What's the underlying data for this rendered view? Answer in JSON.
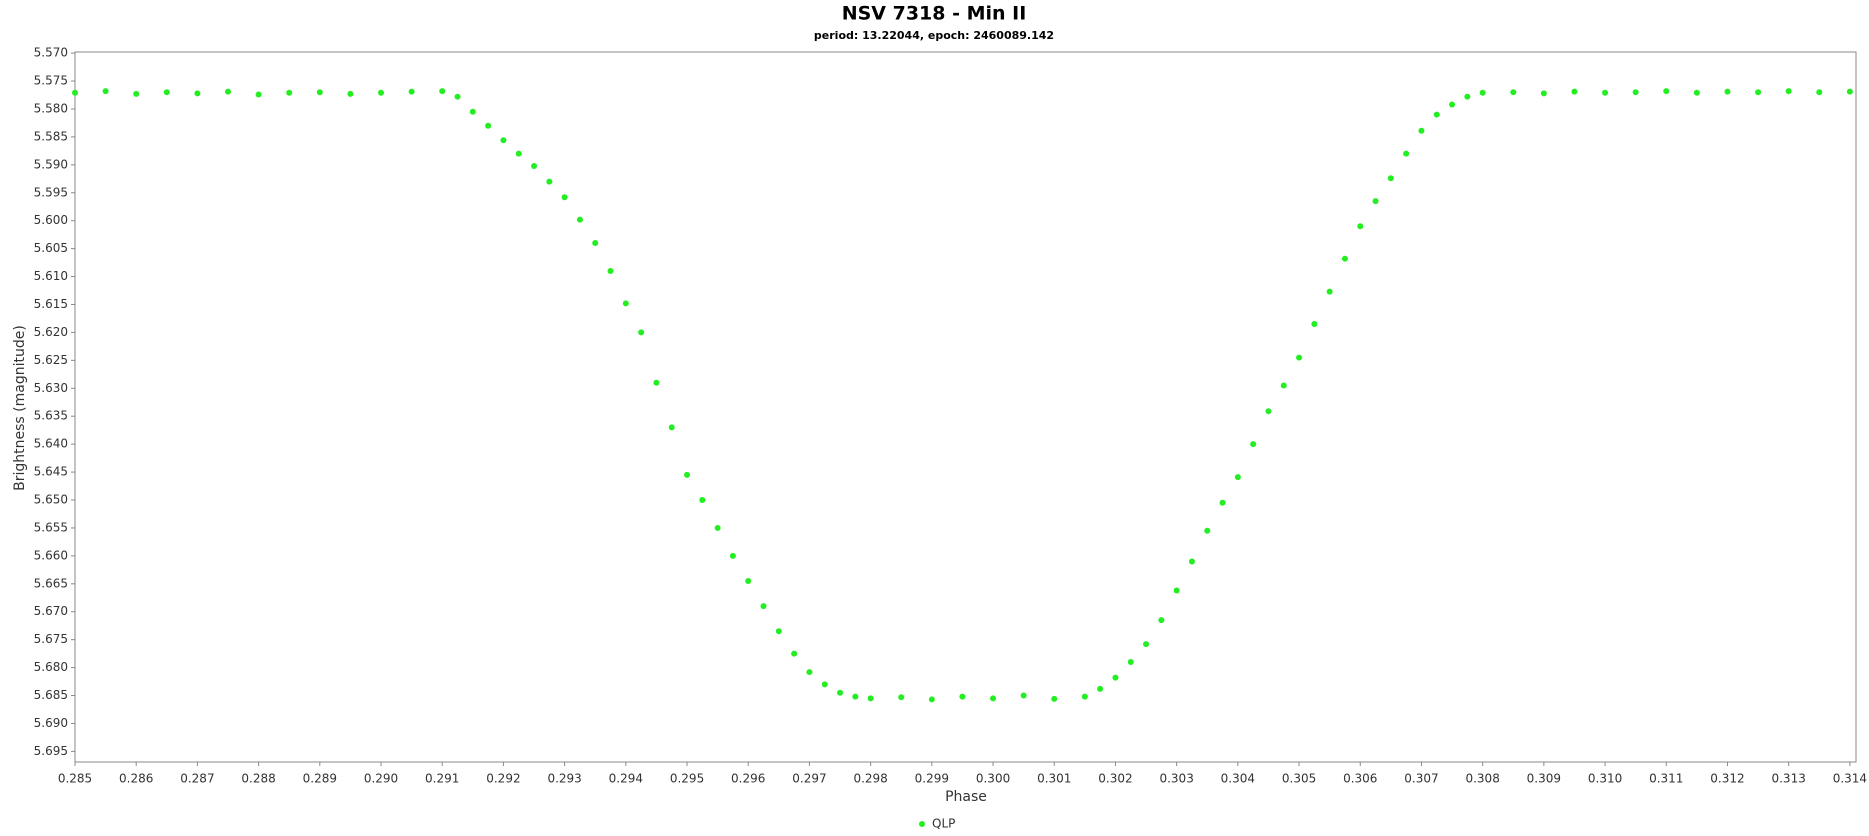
{
  "chart_data": {
    "type": "scatter",
    "title": "NSV 7318 - Min II",
    "subtitle": "period: 13.22044, epoch: 2460089.142",
    "x_label": "Phase",
    "y_label": "Brightness (magnitude)",
    "xlim": [
      0.285,
      0.3141
    ],
    "ylim": [
      5.5698,
      5.6969
    ],
    "y_inverted": true,
    "grid": false,
    "legend": "bottom",
    "xticks": [
      0.285,
      0.286,
      0.287,
      0.288,
      0.289,
      {
        "value": 0.29,
        "label": "0.290"
      },
      0.291,
      0.292,
      0.293,
      0.294,
      0.295,
      0.296,
      0.297,
      0.298,
      0.299,
      {
        "value": 0.3,
        "label": "0.300"
      },
      0.301,
      0.302,
      0.303,
      0.304,
      0.305,
      0.306,
      0.307,
      0.308,
      0.309,
      {
        "value": 0.31,
        "label": "0.310"
      },
      0.311,
      0.312,
      0.313,
      0.314
    ],
    "yticks": [
      {
        "value": 5.57,
        "label": "5.570"
      },
      5.575,
      {
        "value": 5.58,
        "label": "5.580"
      },
      5.585,
      {
        "value": 5.59,
        "label": "5.590"
      },
      5.595,
      {
        "value": 5.6,
        "label": "5.600"
      },
      5.605,
      {
        "value": 5.61,
        "label": "5.610"
      },
      5.615,
      {
        "value": 5.62,
        "label": "5.620"
      },
      5.625,
      {
        "value": 5.63,
        "label": "5.630"
      },
      5.635,
      {
        "value": 5.64,
        "label": "5.640"
      },
      5.645,
      {
        "value": 5.65,
        "label": "5.650"
      },
      5.655,
      {
        "value": 5.66,
        "label": "5.660"
      },
      5.665,
      {
        "value": 5.67,
        "label": "5.670"
      },
      5.675,
      {
        "value": 5.68,
        "label": "5.680"
      },
      5.685,
      {
        "value": 5.69,
        "label": "5.690"
      },
      5.695
    ],
    "x": [
      0.285,
      0.2855,
      0.286,
      0.2865,
      0.287,
      0.2875,
      0.288,
      0.2885,
      0.289,
      0.2895,
      0.29,
      0.2905,
      0.291,
      0.29125,
      0.2915,
      0.29175,
      0.292,
      0.29225,
      0.2925,
      0.29275,
      0.293,
      0.29325,
      0.2935,
      0.29375,
      0.294,
      0.29425,
      0.2945,
      0.29475,
      0.295,
      0.29525,
      0.2955,
      0.29575,
      0.296,
      0.29625,
      0.2965,
      0.29675,
      0.297,
      0.29725,
      0.2975,
      0.29775,
      0.298,
      0.2985,
      0.299,
      0.2995,
      0.3,
      0.3005,
      0.301,
      0.3015,
      0.30175,
      0.302,
      0.30225,
      0.3025,
      0.30275,
      0.303,
      0.30325,
      0.3035,
      0.30375,
      0.304,
      0.30425,
      0.3045,
      0.30475,
      0.305,
      0.30525,
      0.3055,
      0.30575,
      0.306,
      0.30625,
      0.3065,
      0.30675,
      0.307,
      0.30725,
      0.3075,
      0.30775,
      0.308,
      0.3085,
      0.309,
      0.3095,
      0.31,
      0.3105,
      0.311,
      0.3115,
      0.312,
      0.3125,
      0.313,
      0.3135,
      0.314
    ],
    "series": [
      {
        "name": "QLP",
        "color": "#22ee22",
        "values": [
          5.5771,
          5.5768,
          5.5773,
          5.577,
          5.5772,
          5.5769,
          5.5774,
          5.5771,
          5.577,
          5.5773,
          5.5771,
          5.5769,
          5.5768,
          5.5778,
          5.5805,
          5.583,
          5.5856,
          5.588,
          5.5902,
          5.593,
          5.5958,
          5.5998,
          5.604,
          5.609,
          5.6148,
          5.62,
          5.629,
          5.637,
          5.6455,
          5.65,
          5.655,
          5.66,
          5.6645,
          5.669,
          5.6735,
          5.6775,
          5.6808,
          5.683,
          5.6845,
          5.6852,
          5.6855,
          5.6853,
          5.6857,
          5.6852,
          5.6855,
          5.685,
          5.6856,
          5.6852,
          5.6838,
          5.6818,
          5.679,
          5.6758,
          5.6715,
          5.6662,
          5.661,
          5.6555,
          5.6505,
          5.6459,
          5.64,
          5.6341,
          5.6295,
          5.6245,
          5.6185,
          5.6127,
          5.6068,
          5.601,
          5.5965,
          5.5924,
          5.588,
          5.5839,
          5.581,
          5.5792,
          5.5778,
          5.5771,
          5.577,
          5.5772,
          5.5769,
          5.5771,
          5.577,
          5.5768,
          5.5771,
          5.5769,
          5.577,
          5.5768,
          5.577,
          5.5769
        ]
      }
    ]
  }
}
